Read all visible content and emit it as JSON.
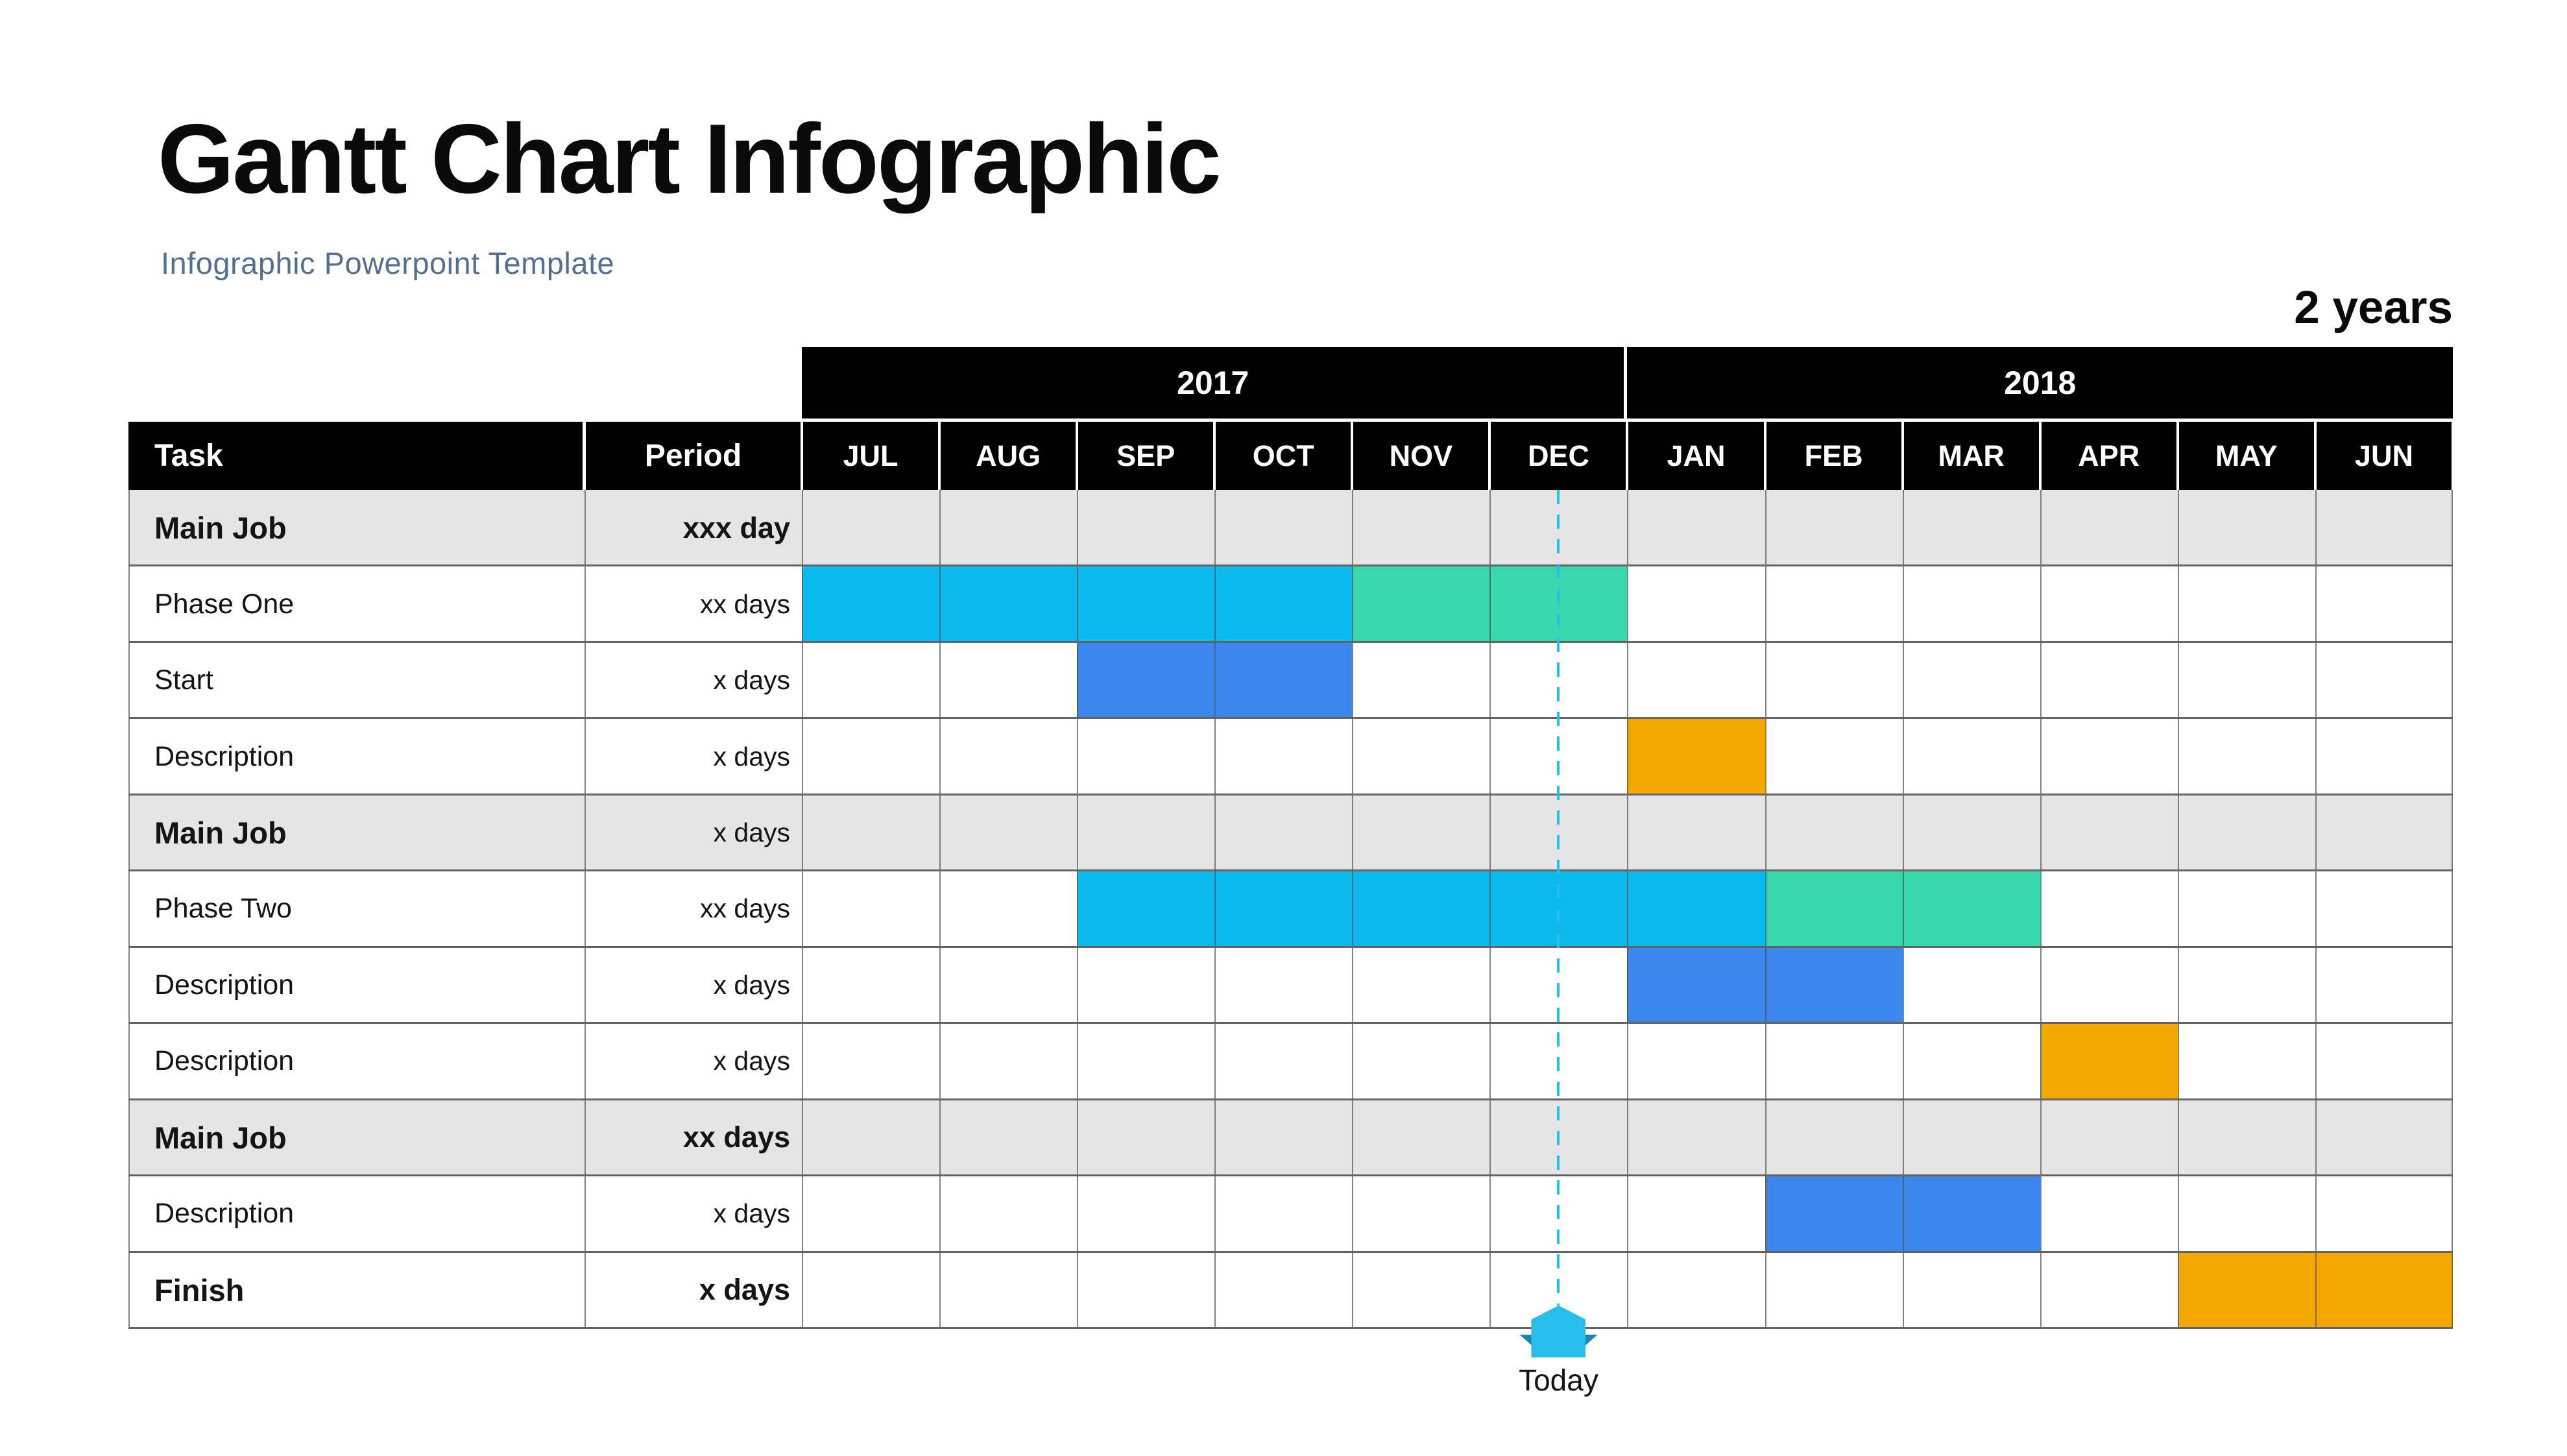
{
  "slide": {
    "title": "Gantt Chart Infographic",
    "subtitle": "Infographic Powerpoint Template",
    "duration_label": "2 years",
    "today_label": "Today"
  },
  "chart_data": {
    "type": "gantt",
    "title": "Gantt Chart Infographic",
    "subtitle": "Infographic Powerpoint Template",
    "duration_label": "2 years",
    "column_headers": {
      "task": "Task",
      "period": "Period"
    },
    "years": [
      {
        "label": "2017",
        "months": [
          "JUL",
          "AUG",
          "SEP",
          "OCT",
          "NOV",
          "DEC"
        ]
      },
      {
        "label": "2018",
        "months": [
          "JAN",
          "FEB",
          "MAR",
          "APR",
          "MAY",
          "JUN"
        ]
      }
    ],
    "rows": [
      {
        "task": "Main Job",
        "period": "xxx day",
        "shade": "gray",
        "task_bold": true,
        "period_bold": true,
        "bars": []
      },
      {
        "task": "Phase One",
        "period": "xx days",
        "shade": "white",
        "task_bold": false,
        "period_bold": false,
        "bars": [
          {
            "color": "cyan",
            "start_index": 0,
            "end_index": 3,
            "start_label": "JUL 2017",
            "end_label": "OCT 2017"
          },
          {
            "color": "green",
            "start_index": 4,
            "end_index": 5,
            "start_label": "NOV 2017",
            "end_label": "DEC 2017"
          }
        ]
      },
      {
        "task": "Start",
        "period": "x days",
        "shade": "white",
        "task_bold": false,
        "period_bold": false,
        "bars": [
          {
            "color": "blue",
            "start_index": 2,
            "end_index": 3,
            "start_label": "SEP 2017",
            "end_label": "OCT 2017"
          }
        ]
      },
      {
        "task": "Description",
        "period": "x days",
        "shade": "white",
        "task_bold": false,
        "period_bold": false,
        "bars": [
          {
            "color": "orange",
            "start_index": 6,
            "end_index": 6,
            "start_label": "JAN 2018",
            "end_label": "JAN 2018"
          }
        ]
      },
      {
        "task": "Main Job",
        "period": "x days",
        "shade": "gray",
        "task_bold": true,
        "period_bold": false,
        "bars": []
      },
      {
        "task": "Phase Two",
        "period": "xx days",
        "shade": "white",
        "task_bold": false,
        "period_bold": false,
        "bars": [
          {
            "color": "cyan",
            "start_index": 2,
            "end_index": 6,
            "start_label": "SEP 2017",
            "end_label": "JAN 2018"
          },
          {
            "color": "green",
            "start_index": 7,
            "end_index": 8,
            "start_label": "FEB 2018",
            "end_label": "MAR 2018"
          }
        ]
      },
      {
        "task": "Description",
        "period": "x days",
        "shade": "white",
        "task_bold": false,
        "period_bold": false,
        "bars": [
          {
            "color": "blue",
            "start_index": 6,
            "end_index": 7,
            "start_label": "JAN 2018",
            "end_label": "FEB 2018"
          }
        ]
      },
      {
        "task": "Description",
        "period": "x days",
        "shade": "white",
        "task_bold": false,
        "period_bold": false,
        "bars": [
          {
            "color": "orange",
            "start_index": 9,
            "end_index": 9,
            "start_label": "APR 2018",
            "end_label": "APR 2018"
          }
        ]
      },
      {
        "task": "Main Job",
        "period": "xx days",
        "shade": "gray",
        "task_bold": true,
        "period_bold": true,
        "bars": []
      },
      {
        "task": "Description",
        "period": "x days",
        "shade": "white",
        "task_bold": false,
        "period_bold": false,
        "bars": [
          {
            "color": "blue",
            "start_index": 7,
            "end_index": 8,
            "start_label": "FEB 2018",
            "end_label": "MAR 2018"
          }
        ]
      },
      {
        "task": "Finish",
        "period": "x days",
        "shade": "white",
        "task_bold": true,
        "period_bold": true,
        "bars": [
          {
            "color": "orange",
            "start_index": 10,
            "end_index": 11,
            "start_label": "MAY 2018",
            "end_label": "JUN 2018"
          }
        ]
      }
    ],
    "today": {
      "label": "Today",
      "month_index": 5,
      "fraction": 0.5,
      "month_label": "DEC 2017"
    },
    "palette": {
      "cyan": "#0BB9ED",
      "green": "#39D8AC",
      "blue": "#3B87EB",
      "orange": "#F5A802",
      "today_marker": "#29BEE9",
      "today_marker_dark": "#1C86AC",
      "header_bg": "#000000",
      "header_text": "#FFFFFF",
      "row_alt_bg": "#E5E5E5",
      "grid_line": "#646464",
      "subtitle_text": "#54708E"
    },
    "legend": "none",
    "grid": "on"
  }
}
